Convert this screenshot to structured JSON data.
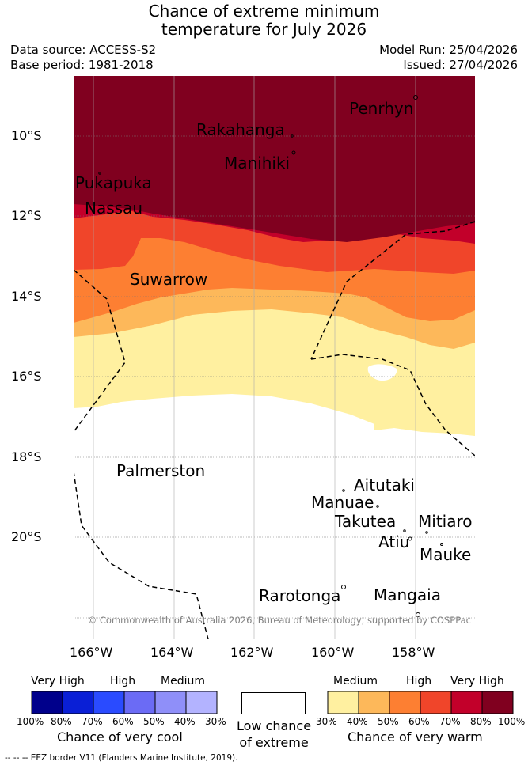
{
  "title_line1": "Chance of extreme minimum",
  "title_line2": "temperature for July 2026",
  "data_source": "Data source: ACCESS-S2",
  "base_period": "Base period: 1981-2018",
  "model_run": "Model Run: 25/04/2026",
  "issued": "Issued: 27/04/2026",
  "map": {
    "lat_labels": [
      "10°S",
      "12°S",
      "14°S",
      "16°S",
      "18°S",
      "20°S"
    ],
    "lon_labels": [
      "166°W",
      "164°W",
      "162°W",
      "160°W",
      "158°W"
    ],
    "islands": [
      "Penrhyn",
      "Rakahanga",
      "Manihiki",
      "Pukapuka",
      "Nassau",
      "Suwarrow",
      "Palmerston",
      "Aitutaki",
      "Manuae",
      "Takutea",
      "Mitiaro",
      "Atiu",
      "Mauke",
      "Rarotonga",
      "Mangaia"
    ],
    "copyright": "© Commonwealth of Australia 2026, Bureau of Meteorology, supported by COSPPac"
  },
  "colors": {
    "cool": [
      "#00008b",
      "#0a1fd6",
      "#2a4bff",
      "#6b6bf5",
      "#8f8ff9",
      "#b3b3ff"
    ],
    "warm": [
      "#fff0a0",
      "#fdb85a",
      "#fd7f32",
      "#f0452a",
      "#c2002a",
      "#80001f"
    ]
  },
  "legend": {
    "cool_headers": [
      "Very High",
      "High",
      "Medium"
    ],
    "cool_ticks": [
      "100%",
      "80%",
      "70%",
      "60%",
      "50%",
      "40%",
      "30%"
    ],
    "cool_caption": "Chance of very cool",
    "low_caption_1": "Low chance",
    "low_caption_2": "of extreme",
    "warm_headers": [
      "Medium",
      "High",
      "Very High"
    ],
    "warm_ticks": [
      "30%",
      "40%",
      "50%",
      "60%",
      "70%",
      "80%",
      "100%"
    ],
    "warm_caption": "Chance of very warm"
  },
  "eez_note": "-- -- -- EEZ border V11 (Flanders Marine Institute, 2019)."
}
